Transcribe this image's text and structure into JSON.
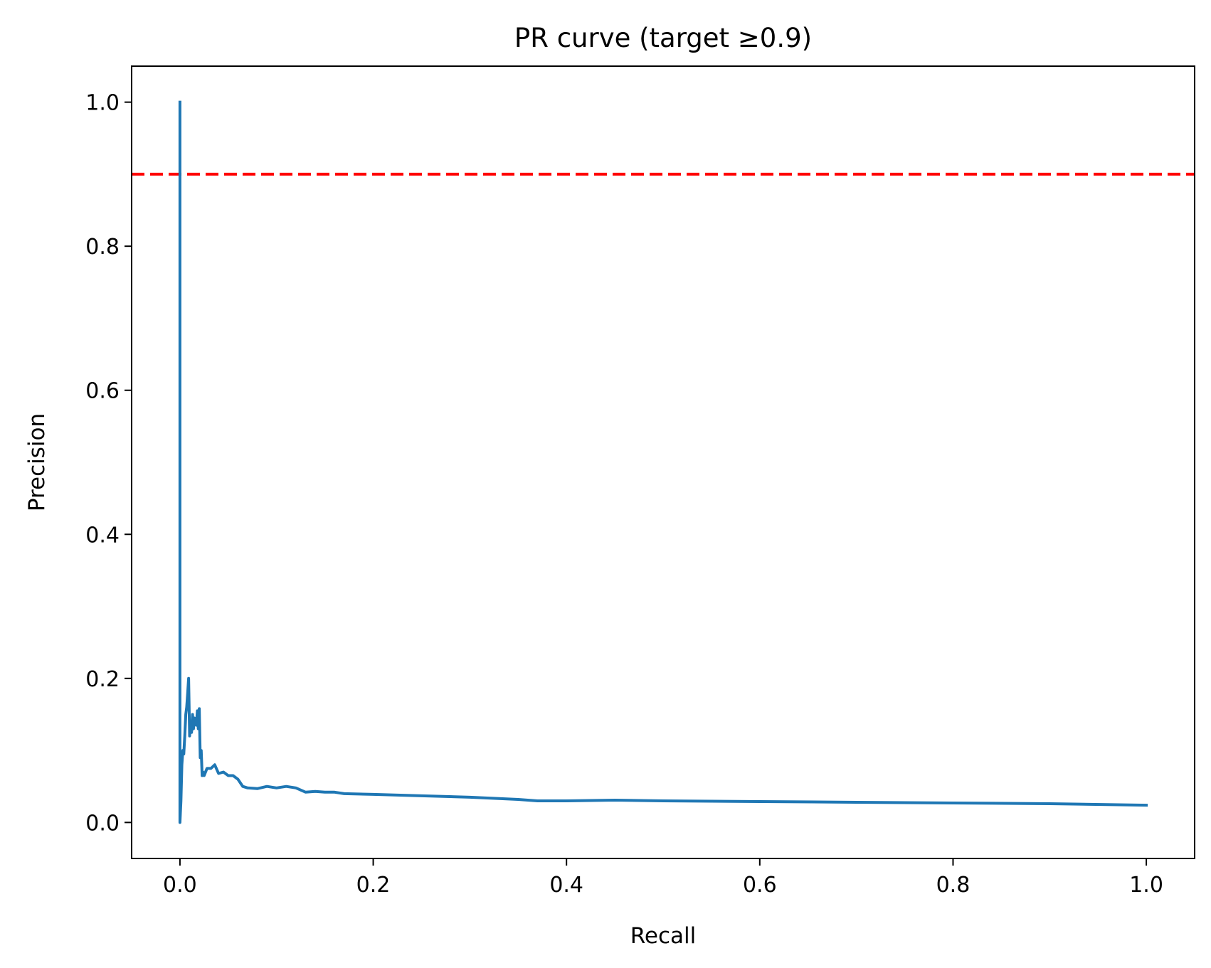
{
  "chart_data": {
    "type": "line",
    "title": "PR curve (target ≥0.9)",
    "xlabel": "Recall",
    "ylabel": "Precision",
    "xlim": [
      -0.05,
      1.05
    ],
    "ylim": [
      -0.05,
      1.05
    ],
    "xticks": [
      0.0,
      0.2,
      0.4,
      0.6,
      0.8,
      1.0
    ],
    "yticks": [
      0.0,
      0.2,
      0.4,
      0.6,
      0.8,
      1.0
    ],
    "xtick_labels": [
      "0.0",
      "0.2",
      "0.4",
      "0.6",
      "0.8",
      "1.0"
    ],
    "ytick_labels": [
      "0.0",
      "0.2",
      "0.4",
      "0.6",
      "0.8",
      "1.0"
    ],
    "grid": false,
    "series": [
      {
        "color": "#1f77b4",
        "x": [
          0.0,
          0.0,
          0.0,
          0.001,
          0.002,
          0.003,
          0.004,
          0.005,
          0.006,
          0.007,
          0.008,
          0.009,
          0.01,
          0.011,
          0.012,
          0.013,
          0.014,
          0.015,
          0.016,
          0.017,
          0.018,
          0.019,
          0.02,
          0.021,
          0.022,
          0.023,
          0.024,
          0.025,
          0.028,
          0.032,
          0.036,
          0.04,
          0.045,
          0.05,
          0.055,
          0.06,
          0.065,
          0.07,
          0.08,
          0.09,
          0.1,
          0.11,
          0.12,
          0.13,
          0.14,
          0.15,
          0.16,
          0.17,
          0.2,
          0.25,
          0.3,
          0.35,
          0.37,
          0.4,
          0.45,
          0.5,
          0.6,
          0.7,
          0.8,
          0.9,
          1.0
        ],
        "y": [
          1.0,
          0.9,
          0.0,
          0.03,
          0.08,
          0.1,
          0.095,
          0.12,
          0.15,
          0.16,
          0.18,
          0.2,
          0.12,
          0.14,
          0.125,
          0.15,
          0.13,
          0.145,
          0.14,
          0.135,
          0.155,
          0.13,
          0.158,
          0.09,
          0.1,
          0.065,
          0.07,
          0.065,
          0.075,
          0.075,
          0.08,
          0.068,
          0.07,
          0.065,
          0.065,
          0.06,
          0.05,
          0.048,
          0.047,
          0.05,
          0.048,
          0.05,
          0.048,
          0.042,
          0.043,
          0.042,
          0.042,
          0.04,
          0.039,
          0.037,
          0.035,
          0.032,
          0.03,
          0.03,
          0.031,
          0.03,
          0.029,
          0.028,
          0.027,
          0.026,
          0.024
        ]
      }
    ],
    "reference_lines": [
      {
        "y": 0.9,
        "color": "#ff0000",
        "style": "dashed"
      }
    ]
  }
}
